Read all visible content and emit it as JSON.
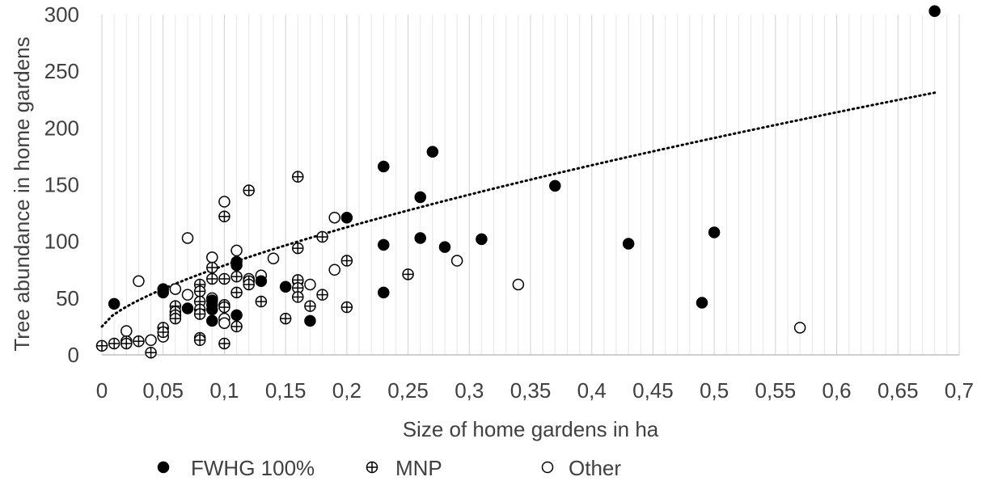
{
  "chart_data": {
    "type": "scatter",
    "title": "",
    "xlabel": "Size of home gardens in ha",
    "ylabel": "Tree abundance in home gardens",
    "xlim": [
      0,
      0.7
    ],
    "ylim": [
      0,
      300
    ],
    "x_ticks": [
      "0",
      "0,05",
      "0,1",
      "0,15",
      "0,2",
      "0,25",
      "0,3",
      "0,35",
      "0,4",
      "0,45",
      "0,5",
      "0,55",
      "0,6",
      "0,65",
      "0,7"
    ],
    "y_ticks": [
      "0",
      "50",
      "100",
      "150",
      "200",
      "250",
      "300"
    ],
    "grid": "vertical",
    "legend_position": "bottom",
    "trendline": {
      "style": "dotted",
      "type": "power",
      "a": 270,
      "b": 0.7,
      "c": 25,
      "x_range": [
        0,
        0.68
      ]
    },
    "series": [
      {
        "name": "FWHG 100%",
        "marker": "filled-circle",
        "points": [
          [
            0.01,
            45
          ],
          [
            0.05,
            58
          ],
          [
            0.05,
            55
          ],
          [
            0.07,
            41
          ],
          [
            0.09,
            48
          ],
          [
            0.09,
            40
          ],
          [
            0.09,
            30
          ],
          [
            0.11,
            82
          ],
          [
            0.11,
            79
          ],
          [
            0.11,
            35
          ],
          [
            0.13,
            65
          ],
          [
            0.15,
            60
          ],
          [
            0.17,
            30
          ],
          [
            0.2,
            121
          ],
          [
            0.23,
            166
          ],
          [
            0.23,
            97
          ],
          [
            0.23,
            55
          ],
          [
            0.26,
            139
          ],
          [
            0.26,
            103
          ],
          [
            0.27,
            179
          ],
          [
            0.28,
            95
          ],
          [
            0.31,
            102
          ],
          [
            0.37,
            149
          ],
          [
            0.43,
            98
          ],
          [
            0.49,
            46
          ],
          [
            0.5,
            108
          ],
          [
            0.68,
            303
          ]
        ]
      },
      {
        "name": "MNP",
        "marker": "circle-plus",
        "points": [
          [
            0,
            8
          ],
          [
            0.01,
            10
          ],
          [
            0.02,
            12
          ],
          [
            0.02,
            10
          ],
          [
            0.03,
            12
          ],
          [
            0.04,
            2
          ],
          [
            0.05,
            24
          ],
          [
            0.05,
            20
          ],
          [
            0.06,
            43
          ],
          [
            0.06,
            38
          ],
          [
            0.06,
            35
          ],
          [
            0.06,
            32
          ],
          [
            0.08,
            62
          ],
          [
            0.08,
            56
          ],
          [
            0.08,
            47
          ],
          [
            0.08,
            40
          ],
          [
            0.08,
            36
          ],
          [
            0.08,
            15
          ],
          [
            0.08,
            13
          ],
          [
            0.09,
            77
          ],
          [
            0.09,
            67
          ],
          [
            0.09,
            48
          ],
          [
            0.09,
            44
          ],
          [
            0.1,
            122
          ],
          [
            0.1,
            67
          ],
          [
            0.1,
            44
          ],
          [
            0.1,
            42
          ],
          [
            0.1,
            10
          ],
          [
            0.11,
            69
          ],
          [
            0.11,
            55
          ],
          [
            0.11,
            25
          ],
          [
            0.12,
            145
          ],
          [
            0.12,
            65
          ],
          [
            0.12,
            62
          ],
          [
            0.13,
            47
          ],
          [
            0.15,
            32
          ],
          [
            0.16,
            157
          ],
          [
            0.16,
            94
          ],
          [
            0.16,
            66
          ],
          [
            0.16,
            59
          ],
          [
            0.16,
            51
          ],
          [
            0.17,
            43
          ],
          [
            0.18,
            104
          ],
          [
            0.18,
            53
          ],
          [
            0.2,
            83
          ],
          [
            0.2,
            42
          ],
          [
            0.25,
            71
          ]
        ]
      },
      {
        "name": "Other",
        "marker": "open-circle",
        "points": [
          [
            0.02,
            21
          ],
          [
            0.03,
            65
          ],
          [
            0.04,
            13
          ],
          [
            0.05,
            16
          ],
          [
            0.06,
            58
          ],
          [
            0.07,
            103
          ],
          [
            0.07,
            53
          ],
          [
            0.09,
            86
          ],
          [
            0.09,
            50
          ],
          [
            0.1,
            135
          ],
          [
            0.1,
            32
          ],
          [
            0.1,
            28
          ],
          [
            0.11,
            92
          ],
          [
            0.12,
            67
          ],
          [
            0.13,
            70
          ],
          [
            0.14,
            85
          ],
          [
            0.16,
            65
          ],
          [
            0.17,
            62
          ],
          [
            0.19,
            121
          ],
          [
            0.19,
            75
          ],
          [
            0.29,
            83
          ],
          [
            0.34,
            62
          ],
          [
            0.57,
            24
          ]
        ]
      }
    ]
  }
}
